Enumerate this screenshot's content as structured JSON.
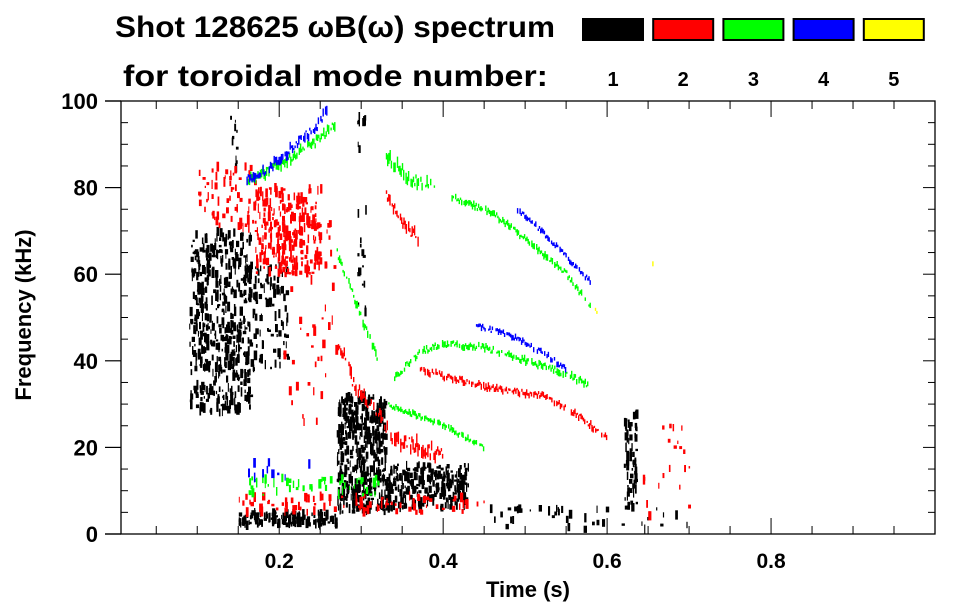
{
  "chart_data": {
    "type": "heatmap",
    "title_line1": "Shot 128625 ωB(ω) spectrum",
    "title_line2": "for toroidal mode number:",
    "xlabel": "Time (s)",
    "ylabel": "Frequency (kHz)",
    "xlim": [
      0.007,
      1.0
    ],
    "ylim": [
      0,
      100
    ],
    "x_ticks": [
      {
        "v": 0.2,
        "label": "0.2"
      },
      {
        "v": 0.4,
        "label": "0.4"
      },
      {
        "v": 0.6,
        "label": "0.6"
      },
      {
        "v": 0.8,
        "label": "0.8"
      }
    ],
    "y_ticks": [
      {
        "v": 0,
        "label": "0"
      },
      {
        "v": 20,
        "label": "20"
      },
      {
        "v": 40,
        "label": "40"
      },
      {
        "v": 60,
        "label": "60"
      },
      {
        "v": 80,
        "label": "80"
      },
      {
        "v": 100,
        "label": "100"
      }
    ],
    "x_minor_step": 0.05,
    "y_minor_step": 5,
    "legend": [
      {
        "mode": "1",
        "color": "#000000"
      },
      {
        "mode": "2",
        "color": "#ff0000"
      },
      {
        "mode": "3",
        "color": "#00ff00"
      },
      {
        "mode": "4",
        "color": "#0000ff"
      },
      {
        "mode": "5",
        "color": "#ffff00"
      }
    ],
    "blobs": [
      {
        "mode": "1",
        "t": [
          0.09,
          0.165
        ],
        "f": [
          28,
          70
        ],
        "density": 520
      },
      {
        "mode": "1",
        "t": [
          0.165,
          0.21
        ],
        "f": [
          38,
          62
        ],
        "density": 90
      },
      {
        "mode": "1",
        "t": [
          0.27,
          0.33
        ],
        "f": [
          5,
          32
        ],
        "density": 420
      },
      {
        "mode": "1",
        "t": [
          0.33,
          0.43
        ],
        "f": [
          6,
          16
        ],
        "density": 260
      },
      {
        "mode": "1",
        "t": [
          0.15,
          0.27
        ],
        "f": [
          2,
          5
        ],
        "density": 140
      },
      {
        "mode": "1",
        "t": [
          0.62,
          0.635
        ],
        "f": [
          6,
          28
        ],
        "density": 60
      },
      {
        "mode": "1",
        "t": [
          0.295,
          0.305
        ],
        "f": [
          50,
          98
        ],
        "density": 25
      },
      {
        "mode": "1",
        "t": [
          0.14,
          0.15
        ],
        "f": [
          84,
          97
        ],
        "density": 10
      },
      {
        "mode": "1",
        "t": [
          0.45,
          0.7
        ],
        "f": [
          1,
          6
        ],
        "density": 40
      },
      {
        "mode": "2",
        "t": [
          0.1,
          0.17
        ],
        "f": [
          70,
          85
        ],
        "density": 60
      },
      {
        "mode": "2",
        "t": [
          0.17,
          0.25
        ],
        "f": [
          60,
          80
        ],
        "density": 260
      },
      {
        "mode": "2",
        "t": [
          0.2,
          0.27
        ],
        "f": [
          25,
          72
        ],
        "density": 50
      },
      {
        "mode": "2",
        "t": [
          0.15,
          0.45
        ],
        "f": [
          5,
          9
        ],
        "density": 90
      },
      {
        "mode": "2",
        "t": [
          0.64,
          0.7
        ],
        "f": [
          4,
          25
        ],
        "density": 20
      },
      {
        "mode": "3",
        "t": [
          0.16,
          0.32
        ],
        "f": [
          9,
          13
        ],
        "density": 50
      },
      {
        "mode": "4",
        "t": [
          0.16,
          0.24
        ],
        "f": [
          13,
          17
        ],
        "density": 10
      }
    ],
    "tracks": [
      {
        "mode": "2",
        "points": [
          [
            0.27,
            45
          ],
          [
            0.29,
            35
          ],
          [
            0.31,
            30
          ],
          [
            0.34,
            22
          ],
          [
            0.37,
            20
          ],
          [
            0.4,
            18
          ]
        ],
        "spread": 3
      },
      {
        "mode": "2",
        "points": [
          [
            0.33,
            78
          ],
          [
            0.35,
            72
          ],
          [
            0.37,
            68
          ]
        ],
        "spread": 2.5
      },
      {
        "mode": "2",
        "points": [
          [
            0.37,
            38
          ],
          [
            0.45,
            34
          ],
          [
            0.52,
            32
          ],
          [
            0.56,
            28
          ],
          [
            0.6,
            22
          ]
        ],
        "spread": 1.2
      },
      {
        "mode": "3",
        "points": [
          [
            0.16,
            82
          ],
          [
            0.2,
            85
          ],
          [
            0.24,
            90
          ],
          [
            0.27,
            95
          ]
        ],
        "spread": 2
      },
      {
        "mode": "3",
        "points": [
          [
            0.27,
            65
          ],
          [
            0.29,
            55
          ],
          [
            0.31,
            45
          ],
          [
            0.32,
            40
          ]
        ],
        "spread": 1.5
      },
      {
        "mode": "3",
        "points": [
          [
            0.33,
            87
          ],
          [
            0.36,
            82
          ],
          [
            0.39,
            80
          ]
        ],
        "spread": 2.5
      },
      {
        "mode": "3",
        "points": [
          [
            0.41,
            78
          ],
          [
            0.46,
            74
          ],
          [
            0.5,
            68
          ],
          [
            0.55,
            60
          ],
          [
            0.58,
            52
          ]
        ],
        "spread": 1.2
      },
      {
        "mode": "3",
        "points": [
          [
            0.34,
            36
          ],
          [
            0.37,
            42
          ],
          [
            0.4,
            44
          ],
          [
            0.45,
            43
          ],
          [
            0.5,
            40
          ],
          [
            0.55,
            37
          ],
          [
            0.58,
            34
          ]
        ],
        "spread": 1.3
      },
      {
        "mode": "3",
        "points": [
          [
            0.33,
            30
          ],
          [
            0.4,
            25
          ],
          [
            0.45,
            20
          ]
        ],
        "spread": 1
      },
      {
        "mode": "4",
        "points": [
          [
            0.16,
            82
          ],
          [
            0.19,
            85
          ],
          [
            0.22,
            90
          ],
          [
            0.25,
            95
          ],
          [
            0.26,
            100
          ]
        ],
        "spread": 2
      },
      {
        "mode": "4",
        "points": [
          [
            0.44,
            48
          ],
          [
            0.48,
            46
          ],
          [
            0.52,
            42
          ],
          [
            0.55,
            38
          ]
        ],
        "spread": 1
      },
      {
        "mode": "4",
        "points": [
          [
            0.49,
            75
          ],
          [
            0.53,
            68
          ],
          [
            0.58,
            58
          ]
        ],
        "spread": 1
      },
      {
        "mode": "5",
        "points": [
          [
            0.655,
            62
          ],
          [
            0.66,
            56
          ]
        ],
        "spread": 1
      },
      {
        "mode": "5",
        "points": [
          [
            0.585,
            52
          ],
          [
            0.59,
            49
          ]
        ],
        "spread": 0.8
      }
    ]
  }
}
